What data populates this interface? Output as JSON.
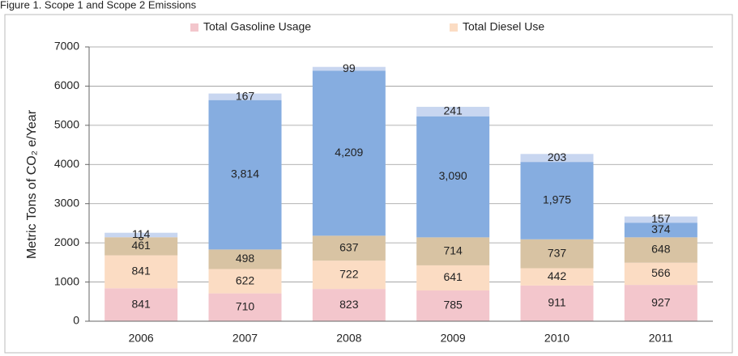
{
  "chart_data": {
    "type": "stacked_bar",
    "title": "Figure 1. Scope 1 and Scope 2 Emissions",
    "y_label": "Metric Tons  of CO₂ e/Year",
    "categories": [
      "2006",
      "2007",
      "2008",
      "2009",
      "2010",
      "2011"
    ],
    "series": [
      {
        "name": "Total Gasoline Usage",
        "color": "#f3c6cc",
        "values": [
          841,
          710,
          823,
          785,
          911,
          927
        ]
      },
      {
        "name": "Total Diesel Use",
        "color": "#fbdcc3",
        "values": [
          841,
          622,
          722,
          641,
          442,
          566
        ]
      },
      {
        "color": "#d8c3a3",
        "values": [
          461,
          498,
          637,
          714,
          737,
          648
        ]
      },
      {
        "color": "#86ade0",
        "values": [
          0,
          3814,
          4209,
          3090,
          1975,
          374
        ],
        "value_labels": [
          "0",
          "3,814",
          "4,209",
          "3,090",
          "1,975",
          "374"
        ]
      },
      {
        "color": "#c8d6f0",
        "values": [
          114,
          167,
          99,
          241,
          203,
          157
        ]
      }
    ],
    "ylim": [
      0,
      7000
    ],
    "yticks": [
      0,
      1000,
      2000,
      3000,
      4000,
      5000,
      6000,
      7000
    ],
    "grid": true
  }
}
